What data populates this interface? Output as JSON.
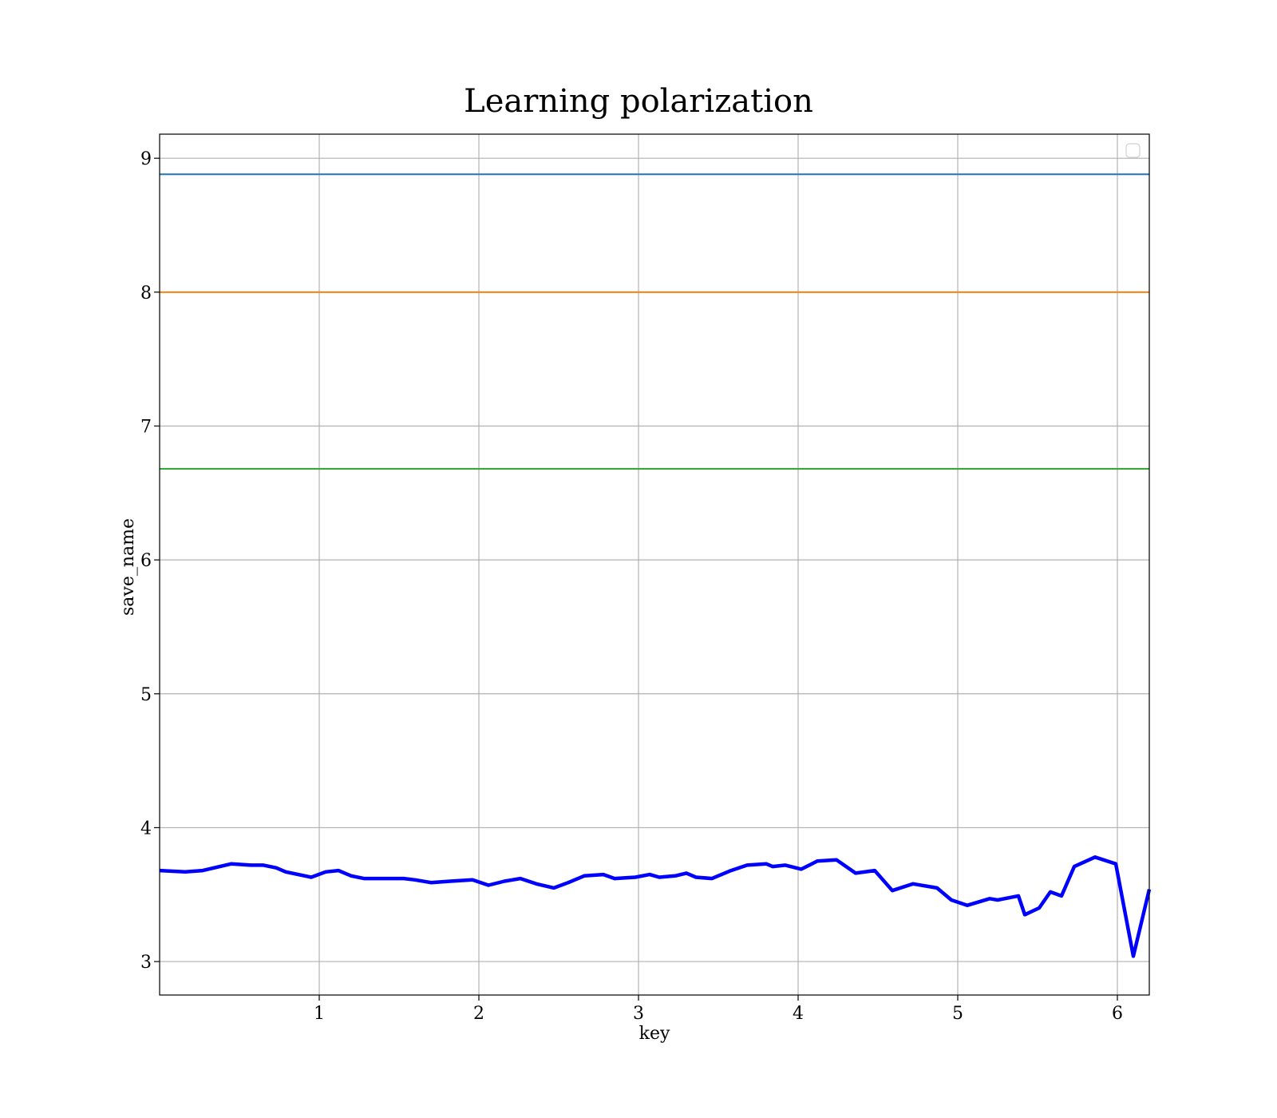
{
  "chart_data": {
    "type": "line",
    "title": "Learning polarization",
    "xlabel": "key",
    "ylabel": "save_name",
    "xlim": [
      0.0,
      6.2
    ],
    "ylim": [
      2.75,
      9.18
    ],
    "xticks": [
      1,
      2,
      3,
      4,
      5,
      6
    ],
    "yticks": [
      3,
      4,
      5,
      6,
      7,
      8,
      9
    ],
    "grid": true,
    "legend": {
      "placement": "top-right",
      "entries": []
    },
    "hlines": [
      {
        "y": 8.88,
        "color": "#1f77b4"
      },
      {
        "y": 8.0,
        "color": "#ff7f0e"
      },
      {
        "y": 6.68,
        "color": "#2ca02c"
      }
    ],
    "series": [
      {
        "color": "#0000ff",
        "x": [
          0.0,
          0.16,
          0.27,
          0.45,
          0.57,
          0.65,
          0.73,
          0.79,
          0.95,
          1.04,
          1.12,
          1.2,
          1.28,
          1.4,
          1.53,
          1.6,
          1.7,
          1.82,
          1.96,
          2.06,
          2.16,
          2.26,
          2.36,
          2.47,
          2.56,
          2.66,
          2.78,
          2.85,
          2.98,
          3.07,
          3.13,
          3.23,
          3.3,
          3.36,
          3.46,
          3.58,
          3.68,
          3.8,
          3.84,
          3.92,
          4.02,
          4.12,
          4.24,
          4.36,
          4.48,
          4.59,
          4.72,
          4.87,
          4.96,
          5.06,
          5.2,
          5.25,
          5.38,
          5.42,
          5.51,
          5.58,
          5.65,
          5.73,
          5.86,
          5.99,
          6.1,
          6.2
        ],
        "y": [
          3.68,
          3.67,
          3.68,
          3.73,
          3.72,
          3.72,
          3.7,
          3.67,
          3.63,
          3.67,
          3.68,
          3.64,
          3.62,
          3.62,
          3.62,
          3.61,
          3.59,
          3.6,
          3.61,
          3.57,
          3.6,
          3.62,
          3.58,
          3.55,
          3.59,
          3.64,
          3.65,
          3.62,
          3.63,
          3.65,
          3.63,
          3.64,
          3.66,
          3.63,
          3.62,
          3.68,
          3.72,
          3.73,
          3.71,
          3.72,
          3.69,
          3.75,
          3.76,
          3.66,
          3.68,
          3.53,
          3.58,
          3.55,
          3.46,
          3.42,
          3.47,
          3.46,
          3.49,
          3.35,
          3.4,
          3.52,
          3.49,
          3.71,
          3.78,
          3.73,
          3.04,
          3.54
        ]
      }
    ]
  }
}
